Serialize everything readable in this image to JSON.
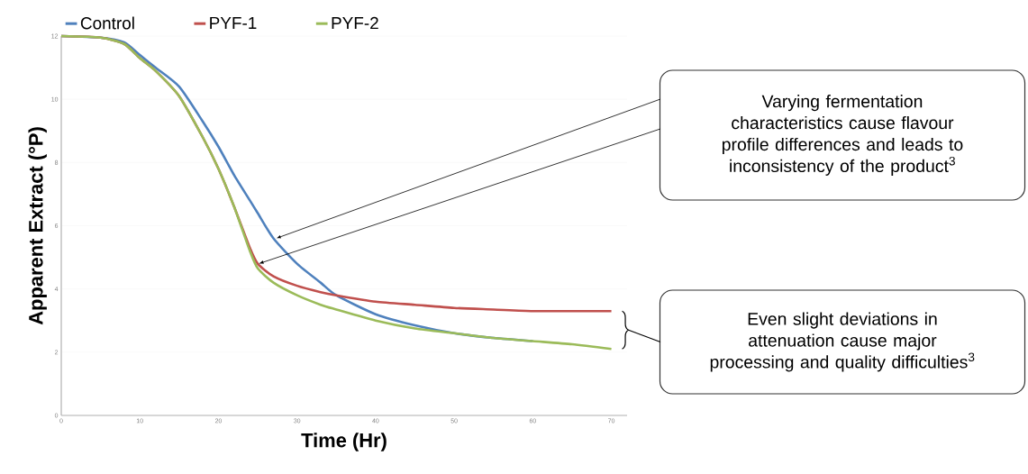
{
  "chart_data": {
    "type": "line",
    "xlabel": "Time (Hr)",
    "ylabel": "Apparent Extract (°P)",
    "x": [
      0,
      5,
      8,
      10,
      12,
      15,
      18,
      20,
      22,
      24,
      25,
      27,
      30,
      33,
      35,
      40,
      45,
      50,
      55,
      60,
      65,
      70
    ],
    "series": [
      {
        "name": "Control",
        "color": "#4f81bd",
        "values": [
          12,
          11.95,
          11.8,
          11.4,
          11,
          10.4,
          9.3,
          8.5,
          7.6,
          6.8,
          6.4,
          5.6,
          4.8,
          4.2,
          3.8,
          3.2,
          2.85,
          2.6,
          2.45,
          2.35,
          null,
          null
        ]
      },
      {
        "name": "PYF-1",
        "color": "#c0504d",
        "values": [
          12,
          11.95,
          11.75,
          11.3,
          10.9,
          10.1,
          8.8,
          7.8,
          6.6,
          5.3,
          4.8,
          4.4,
          4.1,
          3.9,
          3.8,
          3.6,
          3.5,
          3.4,
          3.35,
          3.3,
          3.3,
          3.3
        ]
      },
      {
        "name": "PYF-2",
        "color": "#9bbb59",
        "values": [
          12,
          11.95,
          11.75,
          11.3,
          10.9,
          10.1,
          8.8,
          7.8,
          6.6,
          5.2,
          4.65,
          4.2,
          3.8,
          3.5,
          3.35,
          3.0,
          2.75,
          2.6,
          2.45,
          2.35,
          2.25,
          2.1
        ]
      }
    ],
    "xlim": [
      0,
      72
    ],
    "ylim": [
      0,
      12
    ],
    "xticks": [
      0,
      10,
      20,
      30,
      40,
      50,
      60,
      70
    ],
    "yticks": [
      0,
      2,
      4,
      6,
      8,
      10,
      12
    ],
    "grid": "y",
    "legend": "top",
    "marker": "none",
    "line_style": "solid",
    "annotations": [
      "Varying fermentation characteristics cause flavour profile differences and leads to inconsistency of the product$^{3}$",
      "Even slight deviations in attenuation cause  major processing and quality difficulties$^{3}$"
    ]
  }
}
